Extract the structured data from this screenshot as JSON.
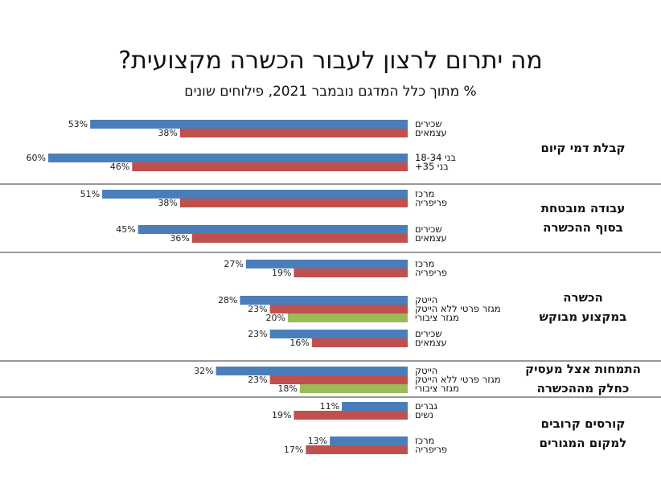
{
  "chart_data": {
    "type": "bar",
    "orientation": "horizontal",
    "title": "מה יתרום לרצון לעבור הכשרה מקצועית?",
    "subtitle": "% מתוך כלל המדגם נובמבר 2021, פילוחים שונים",
    "xlim": [
      0,
      100
    ],
    "unit": "%",
    "colors": {
      "blue": "#4a7ebb",
      "red": "#c0504d",
      "green": "#9bbb59"
    },
    "sections": [
      {
        "category": "קבלת דמי קיום",
        "groups": [
          {
            "bars": [
              {
                "label": "שכירים",
                "value": 53,
                "color": "blue"
              },
              {
                "label": "עצמאים",
                "value": 38,
                "color": "red"
              }
            ]
          },
          {
            "bars": [
              {
                "label": "בני 18-34",
                "value": 60,
                "color": "blue"
              },
              {
                "label": "בני 35+",
                "value": 46,
                "color": "red"
              }
            ]
          }
        ]
      },
      {
        "category": "עבודה מובטחת בסוף ההכשרה",
        "groups": [
          {
            "bars": [
              {
                "label": "מרכז",
                "value": 51,
                "color": "blue"
              },
              {
                "label": "פריפריה",
                "value": 38,
                "color": "red"
              }
            ]
          },
          {
            "bars": [
              {
                "label": "שכירים",
                "value": 45,
                "color": "blue"
              },
              {
                "label": "עצמאים",
                "value": 36,
                "color": "red"
              }
            ]
          }
        ]
      },
      {
        "category": "הכשרה במקצוע מבוקש",
        "groups": [
          {
            "bars": [
              {
                "label": "מרכז",
                "value": 27,
                "color": "blue"
              },
              {
                "label": "פריפריה",
                "value": 19,
                "color": "red"
              }
            ]
          },
          {
            "bars": [
              {
                "label": "הייטק",
                "value": 28,
                "color": "blue"
              },
              {
                "label": "מגזר פרטי ללא הייטק",
                "value": 23,
                "color": "red"
              },
              {
                "label": "מגזר ציבורי",
                "value": 20,
                "color": "green"
              }
            ]
          },
          {
            "bars": [
              {
                "label": "שכירים",
                "value": 23,
                "color": "blue"
              },
              {
                "label": "עצמאים",
                "value": 16,
                "color": "red"
              }
            ]
          }
        ]
      },
      {
        "category": "התמחות אצל מעסיק כחלק מההכשרה",
        "groups": [
          {
            "bars": [
              {
                "label": "הייטק",
                "value": 32,
                "color": "blue"
              },
              {
                "label": "מגזר פרטי ללא הייטק",
                "value": 23,
                "color": "red"
              },
              {
                "label": "מגזר ציבורי",
                "value": 18,
                "color": "green"
              }
            ]
          }
        ]
      },
      {
        "category": "קורסים קרובים למקום המגורים",
        "groups": [
          {
            "bars": [
              {
                "label": "גברים",
                "value": 11,
                "color": "blue"
              },
              {
                "label": "נשים",
                "value": 19,
                "color": "red"
              }
            ]
          },
          {
            "bars": [
              {
                "label": "מרכז",
                "value": 13,
                "color": "blue"
              },
              {
                "label": "פריפריה",
                "value": 17,
                "color": "red"
              }
            ]
          }
        ]
      }
    ]
  }
}
